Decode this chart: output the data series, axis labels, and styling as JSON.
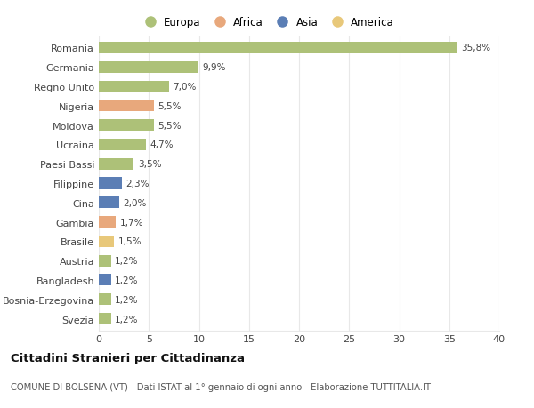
{
  "categories": [
    "Romania",
    "Germania",
    "Regno Unito",
    "Nigeria",
    "Moldova",
    "Ucraina",
    "Paesi Bassi",
    "Filippine",
    "Cina",
    "Gambia",
    "Brasile",
    "Austria",
    "Bangladesh",
    "Bosnia-Erzegovina",
    "Svezia"
  ],
  "values": [
    35.8,
    9.9,
    7.0,
    5.5,
    5.5,
    4.7,
    3.5,
    2.3,
    2.0,
    1.7,
    1.5,
    1.2,
    1.2,
    1.2,
    1.2
  ],
  "labels": [
    "35,8%",
    "9,9%",
    "7,0%",
    "5,5%",
    "5,5%",
    "4,7%",
    "3,5%",
    "2,3%",
    "2,0%",
    "1,7%",
    "1,5%",
    "1,2%",
    "1,2%",
    "1,2%",
    "1,2%"
  ],
  "continents": [
    "Europa",
    "Europa",
    "Europa",
    "Africa",
    "Europa",
    "Europa",
    "Europa",
    "Asia",
    "Asia",
    "Africa",
    "America",
    "Europa",
    "Asia",
    "Europa",
    "Europa"
  ],
  "colors": {
    "Europa": "#adc178",
    "Africa": "#e8a87c",
    "Asia": "#5b7eb5",
    "America": "#e8c87a"
  },
  "xlim": [
    0,
    40
  ],
  "xticks": [
    0,
    5,
    10,
    15,
    20,
    25,
    30,
    35,
    40
  ],
  "title": "Cittadini Stranieri per Cittadinanza",
  "subtitle": "COMUNE DI BOLSENA (VT) - Dati ISTAT al 1° gennaio di ogni anno - Elaborazione TUTTITALIA.IT",
  "background_color": "#ffffff",
  "grid_color": "#e8e8e8",
  "bar_height": 0.6,
  "legend_order": [
    "Europa",
    "Africa",
    "Asia",
    "America"
  ]
}
